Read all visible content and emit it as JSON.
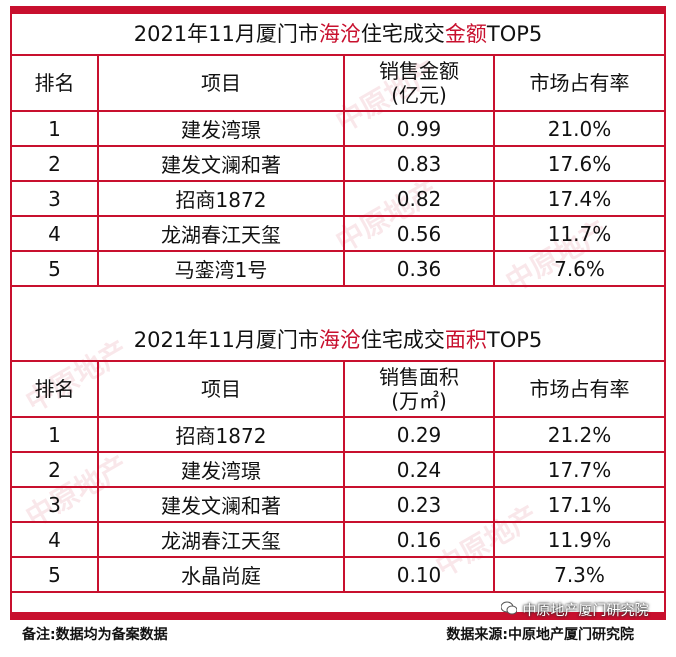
{
  "table1": {
    "title_prefix": "2021年11月厦门市",
    "title_hl1": "海沧",
    "title_mid": "住宅成交",
    "title_hl2": "金额",
    "title_suffix": "TOP5",
    "headers": [
      "排名",
      "项目",
      "销售金额",
      "(亿元)",
      "市场占有率"
    ],
    "rows": [
      [
        "1",
        "建发湾璟",
        "0.99",
        "21.0%"
      ],
      [
        "2",
        "建发文澜和著",
        "0.83",
        "17.6%"
      ],
      [
        "3",
        "招商1872",
        "0.82",
        "17.4%"
      ],
      [
        "4",
        "龙湖春江天玺",
        "0.56",
        "11.7%"
      ],
      [
        "5",
        "马銮湾1号",
        "0.36",
        "7.6%"
      ]
    ]
  },
  "table2": {
    "title_prefix": "2021年11月厦门市",
    "title_hl1": "海沧",
    "title_mid": "住宅成交",
    "title_hl2": "面积",
    "title_suffix": "TOP5",
    "headers": [
      "排名",
      "项目",
      "销售面积",
      "(万㎡)",
      "市场占有率"
    ],
    "rows": [
      [
        "1",
        "招商1872",
        "0.29",
        "21.2%"
      ],
      [
        "2",
        "建发湾璟",
        "0.24",
        "17.7%"
      ],
      [
        "3",
        "建发文澜和著",
        "0.23",
        "17.1%"
      ],
      [
        "4",
        "龙湖春江天玺",
        "0.16",
        "11.9%"
      ],
      [
        "5",
        "水晶尚庭",
        "0.10",
        "7.3%"
      ]
    ]
  },
  "watermark_text": "中原地产",
  "footer": {
    "note": "备注:数据均为备案数据",
    "source": "数据来源:中原地产厦门研究院"
  },
  "wechat": {
    "label": "中原地产厦门研究院",
    "icon": "wechat-icon"
  },
  "colors": {
    "accent": "#c8102e"
  }
}
